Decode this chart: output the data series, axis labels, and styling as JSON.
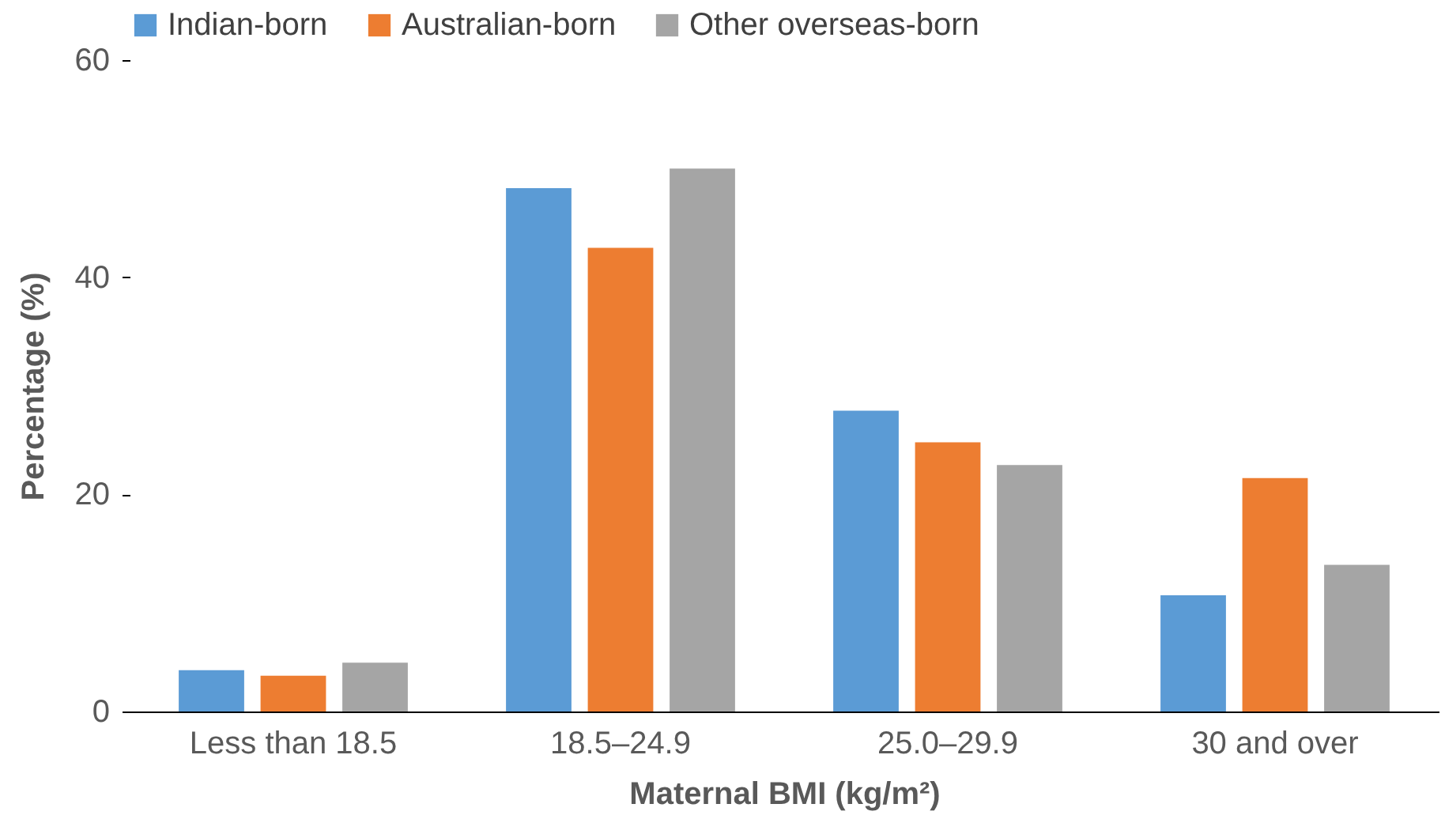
{
  "chart_data": {
    "type": "bar",
    "xlabel": "Maternal BMI (kg/m²)",
    "ylabel": "Percentage (%)",
    "categories": [
      "Less than 18.5",
      "18.5–24.9",
      "25.0–29.9",
      "30 and over"
    ],
    "series": [
      {
        "name": "Indian-born",
        "color": "#5b9bd5",
        "values": [
          3.8,
          48.2,
          27.7,
          10.7
        ]
      },
      {
        "name": "Australian-born",
        "color": "#ed7d31",
        "values": [
          3.3,
          42.7,
          24.8,
          21.5
        ]
      },
      {
        "name": "Other overseas-born",
        "color": "#a5a5a5",
        "values": [
          4.5,
          50.0,
          22.7,
          13.5
        ]
      }
    ],
    "ylim": [
      0,
      60
    ],
    "yticks": [
      0,
      20,
      40,
      60
    ],
    "grid": false,
    "legend": "top left"
  }
}
